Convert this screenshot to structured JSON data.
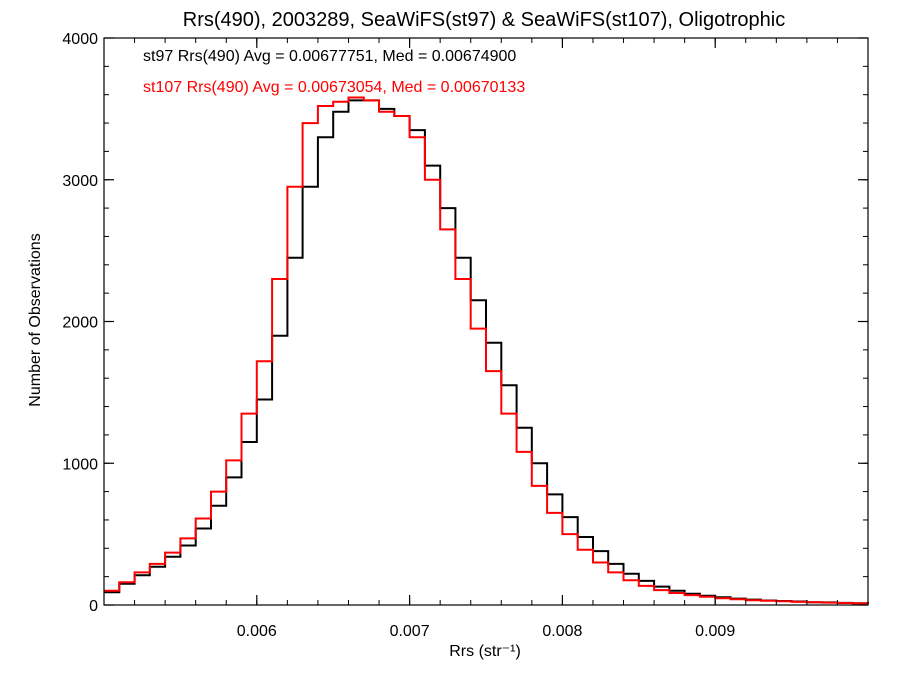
{
  "chart_data": {
    "type": "line",
    "title": "Rrs(490), 2003289, SeaWiFS(st97) & SeaWiFS(st107), Oligotrophic",
    "xlabel": "Rrs (str⁻¹)",
    "ylabel": "Number of Observations",
    "xlim": [
      0.005,
      0.01
    ],
    "ylim": [
      0,
      4000
    ],
    "xticks": [
      0.006,
      0.007,
      0.008,
      0.009
    ],
    "xtick_labels": [
      "0.006",
      "0.007",
      "0.008",
      "0.009"
    ],
    "yticks": [
      0,
      1000,
      2000,
      3000,
      4000
    ],
    "ytick_labels": [
      "0",
      "1000",
      "2000",
      "3000",
      "4000"
    ],
    "grid": false,
    "legend_position": "top-left",
    "annotations": [
      {
        "text": "st97 Rrs(490) Avg = 0.00677751, Med = 0.00674900",
        "color": "#000000"
      },
      {
        "text": "st107 Rrs(490) Avg = 0.00673054, Med = 0.00670133",
        "color": "#ff0000"
      }
    ],
    "series": [
      {
        "color": "#000000",
        "x": [
          0.005,
          0.0051,
          0.0052,
          0.0053,
          0.0054,
          0.0055,
          0.0056,
          0.0057,
          0.0058,
          0.0059,
          0.006,
          0.0061,
          0.0062,
          0.0063,
          0.0064,
          0.0065,
          0.0066,
          0.0067,
          0.0068,
          0.0069,
          0.007,
          0.0071,
          0.0072,
          0.0073,
          0.0074,
          0.0075,
          0.0076,
          0.0077,
          0.0078,
          0.0079,
          0.008,
          0.0081,
          0.0082,
          0.0083,
          0.0084,
          0.0085,
          0.0086,
          0.0087,
          0.0088,
          0.0089,
          0.009,
          0.0091,
          0.0092,
          0.0093,
          0.0094,
          0.0095,
          0.0096,
          0.0097,
          0.0098,
          0.0099,
          0.01
        ],
        "values": [
          90,
          150,
          210,
          270,
          340,
          420,
          540,
          700,
          900,
          1150,
          1450,
          1900,
          2450,
          2950,
          3300,
          3480,
          3560,
          3560,
          3500,
          3450,
          3350,
          3100,
          2800,
          2450,
          2150,
          1850,
          1550,
          1250,
          1000,
          780,
          620,
          480,
          380,
          290,
          220,
          170,
          130,
          100,
          80,
          65,
          55,
          45,
          38,
          32,
          28,
          25,
          20,
          18,
          15,
          12,
          10
        ]
      },
      {
        "color": "#ff0000",
        "x": [
          0.005,
          0.0051,
          0.0052,
          0.0053,
          0.0054,
          0.0055,
          0.0056,
          0.0057,
          0.0058,
          0.0059,
          0.006,
          0.0061,
          0.0062,
          0.0063,
          0.0064,
          0.0065,
          0.0066,
          0.0067,
          0.0068,
          0.0069,
          0.007,
          0.0071,
          0.0072,
          0.0073,
          0.0074,
          0.0075,
          0.0076,
          0.0077,
          0.0078,
          0.0079,
          0.008,
          0.0081,
          0.0082,
          0.0083,
          0.0084,
          0.0085,
          0.0086,
          0.0087,
          0.0088,
          0.0089,
          0.009,
          0.0091,
          0.0092,
          0.0093,
          0.0094,
          0.0095,
          0.0096,
          0.0097,
          0.0098,
          0.0099,
          0.01
        ],
        "values": [
          100,
          160,
          230,
          290,
          370,
          470,
          610,
          800,
          1020,
          1350,
          1720,
          2300,
          2950,
          3400,
          3520,
          3550,
          3580,
          3560,
          3480,
          3450,
          3300,
          3000,
          2650,
          2300,
          1950,
          1650,
          1350,
          1080,
          840,
          650,
          500,
          390,
          300,
          230,
          175,
          135,
          105,
          85,
          70,
          58,
          48,
          40,
          34,
          30,
          26,
          22,
          20,
          17,
          14,
          11,
          8
        ]
      }
    ]
  }
}
